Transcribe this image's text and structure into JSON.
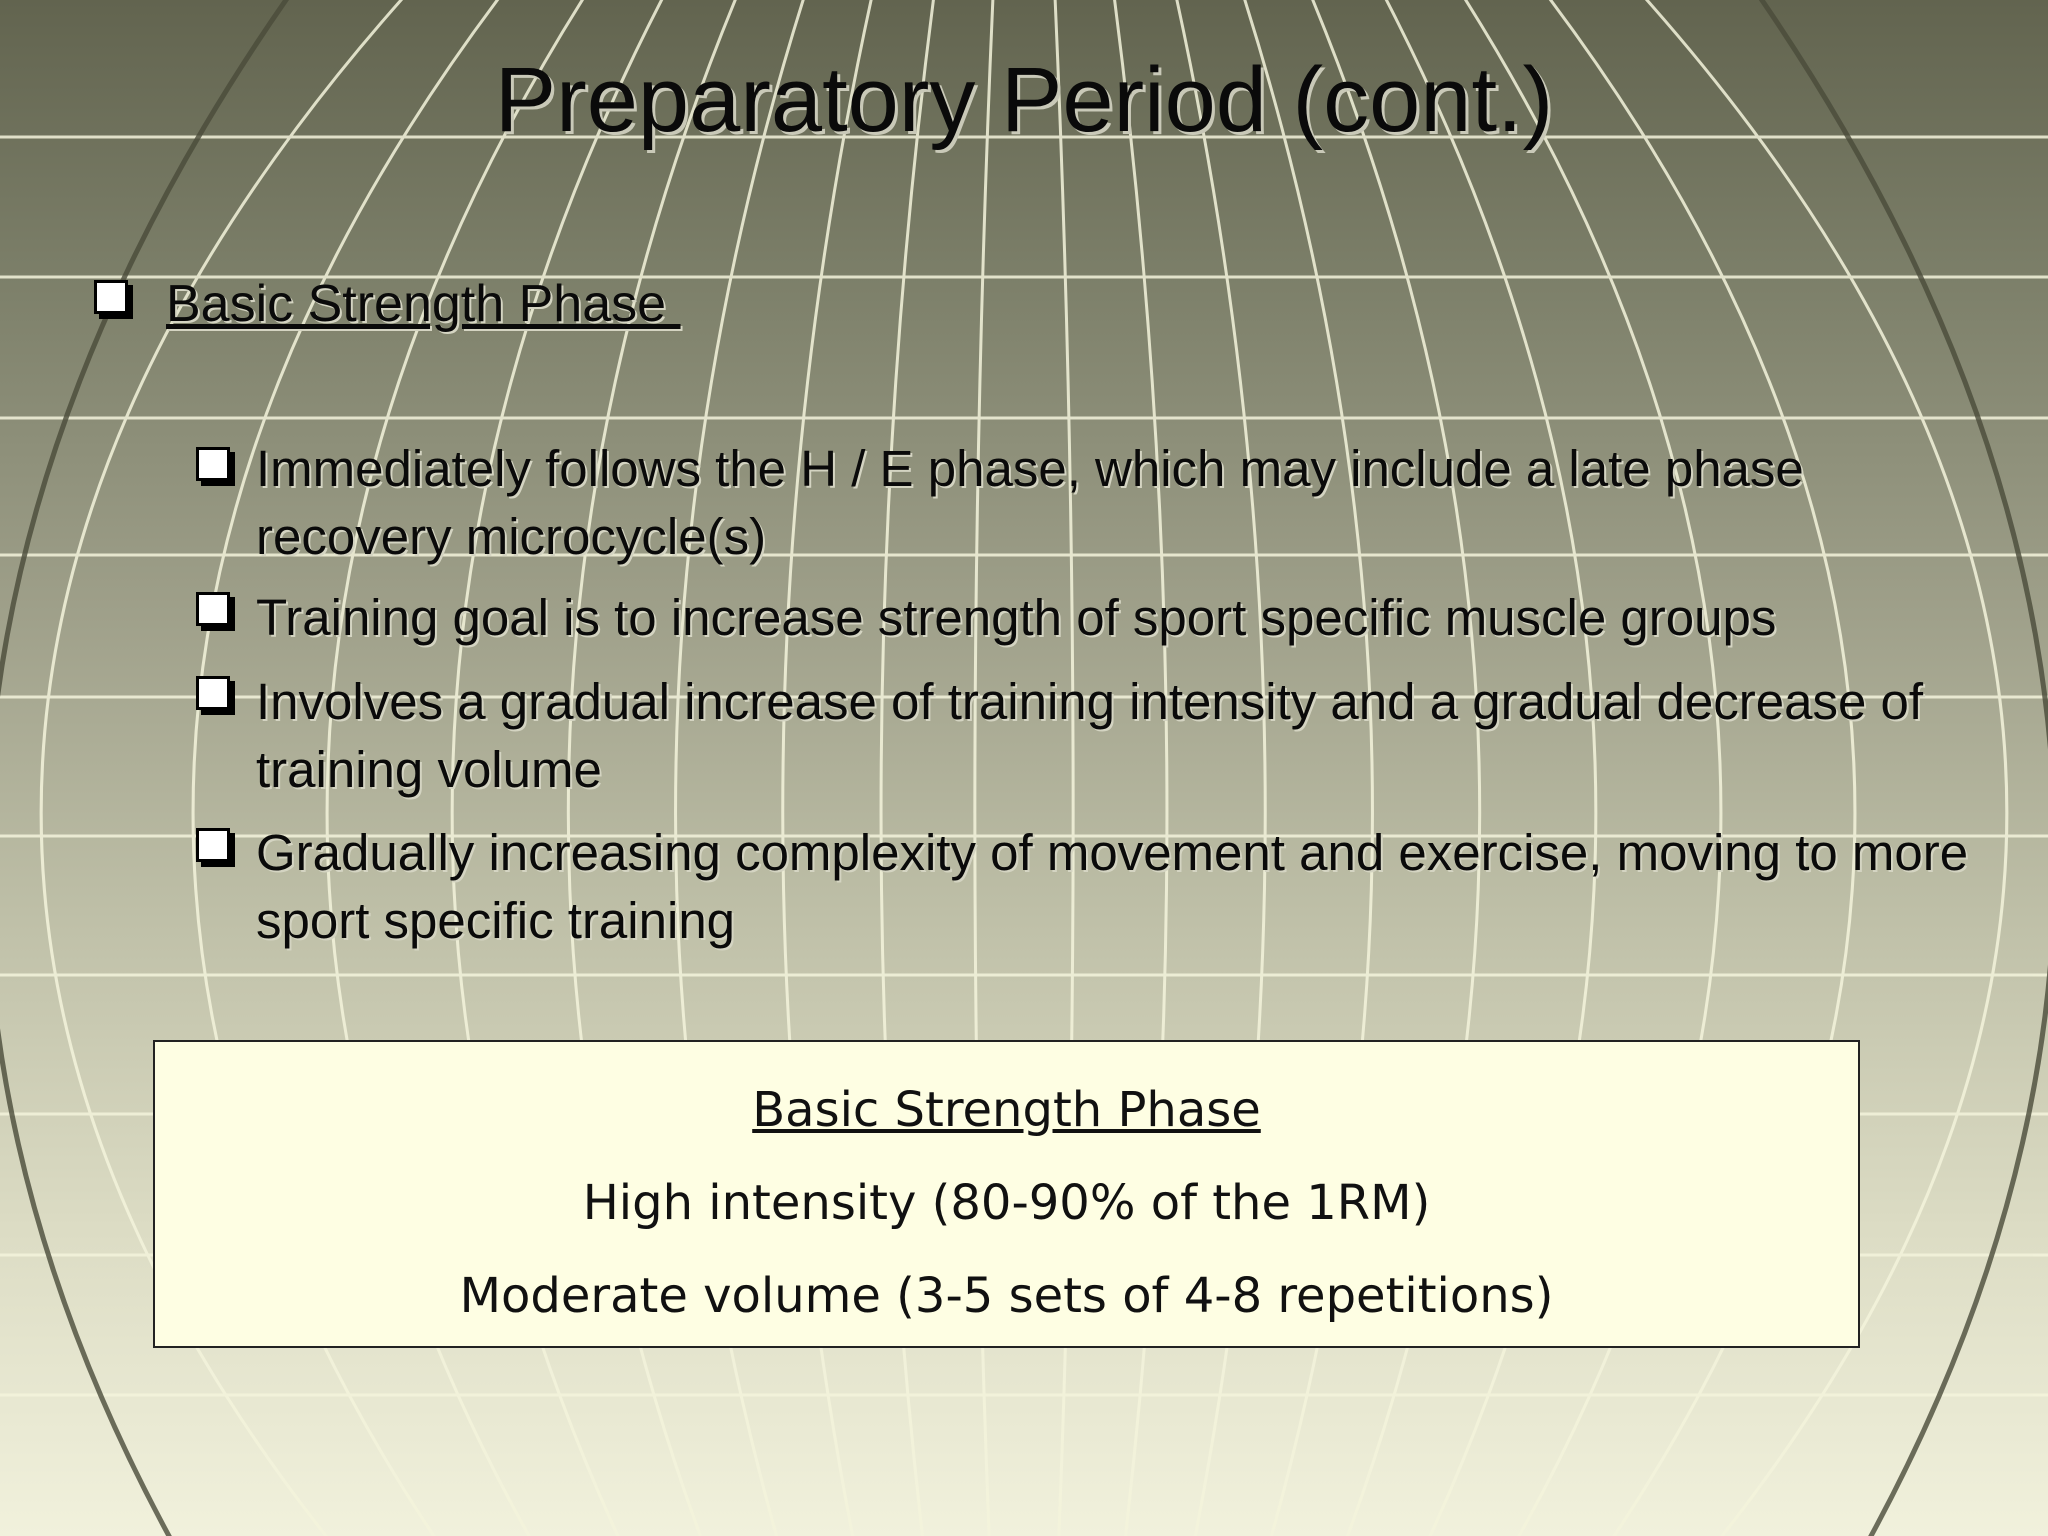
{
  "slide": {
    "title": "Preparatory Period (cont.)",
    "main_bullet": "Basic Strength Phase ",
    "sub_bullets": [
      "Immediately follows the H / E phase, which may include a late phase recovery microcycle(s)",
      "Training goal is to increase strength of sport specific muscle groups",
      "Involves a gradual increase of training intensity and a gradual decrease of training volume",
      "Gradually increasing complexity of movement and exercise, moving to more sport specific training"
    ],
    "box": {
      "heading": "Basic Strength Phase",
      "line1": "High intensity (80-90% of the 1RM)",
      "line2": "Moderate volume (3-5 sets of 4-8 repetitions)"
    }
  },
  "colors": {
    "background_top": "#62644f",
    "background_bottom": "#f1f1dc",
    "grid_lines": "#f4f4dc",
    "box_fill": "#fefee3"
  }
}
